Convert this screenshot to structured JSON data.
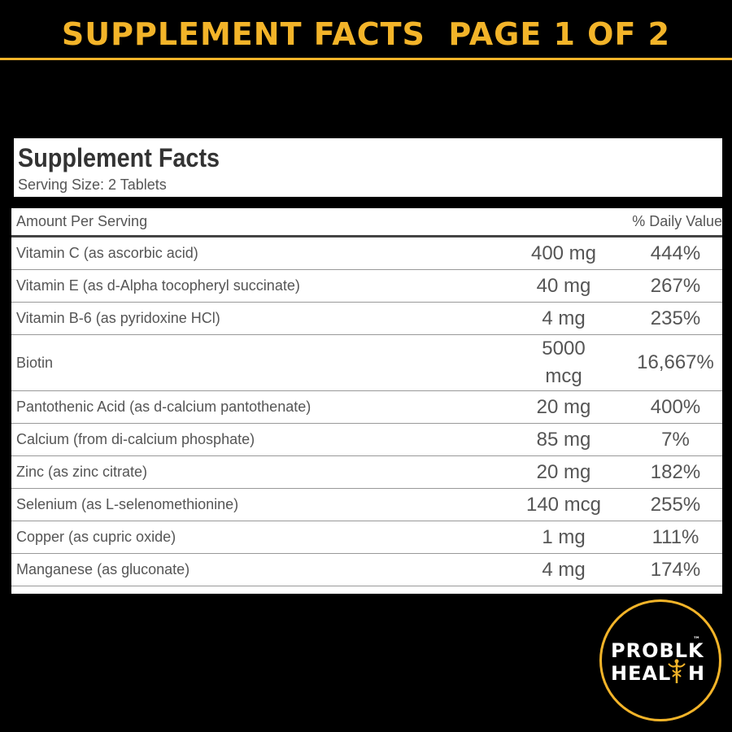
{
  "header": {
    "title": "SUPPLEMENT FACTS  PAGE 1 OF 2"
  },
  "facts": {
    "title": "Supplement Facts",
    "serving_size": "Serving Size: 2 Tablets"
  },
  "table": {
    "header": [
      "Amount Per Serving",
      "% Daily Value"
    ],
    "rows": [
      [
        "Vitamin C (as ascorbic acid)",
        "400 mg",
        "444%"
      ],
      [
        "Vitamin E (as d-Alpha tocopheryl succinate)",
        "40 mg",
        "267%"
      ],
      [
        "Vitamin B-6 (as pyridoxine HCl)",
        "4 mg",
        "235%"
      ],
      [
        "Biotin",
        "5000 mcg",
        "16,667%"
      ],
      [
        "Pantothenic Acid (as d-calcium pantothenate)",
        "20 mg",
        "400%"
      ],
      [
        "Calcium (from di-calcium phosphate)",
        "85 mg",
        "7%"
      ],
      [
        "Zinc (as zinc citrate)",
        "20 mg",
        "182%"
      ],
      [
        "Selenium (as L-selenomethionine)",
        "140 mcg",
        "255%"
      ],
      [
        "Copper (as cupric oxide)",
        "1 mg",
        "111%"
      ],
      [
        "Manganese (as gluconate)",
        "4 mg",
        "174%"
      ]
    ]
  },
  "logo": {
    "line1": "PROBLK",
    "trademark": "™",
    "line2_start": "HEAL",
    "line2_end": "H"
  }
}
